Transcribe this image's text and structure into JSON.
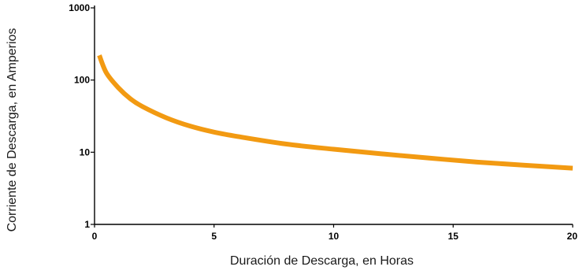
{
  "chart_data": {
    "type": "line",
    "title": "",
    "xlabel": "Duración de Descarga, en Horas",
    "ylabel": "Corriente de Descarga, en Amperios",
    "xlim": [
      0,
      20
    ],
    "ylim": [
      1,
      1000
    ],
    "yscale": "log",
    "grid": false,
    "legend": "none",
    "x_ticks": [
      "0",
      "5",
      "10",
      "15",
      "20"
    ],
    "y_ticks": [
      "1",
      "10",
      "100",
      "1000"
    ],
    "series": [
      {
        "color": "#F29A12",
        "x": [
          0.2,
          0.5,
          1,
          1.5,
          2,
          3,
          4,
          5,
          6,
          8,
          10,
          12,
          14,
          16,
          18,
          20
        ],
        "y": [
          220,
          125,
          78,
          55,
          43,
          30,
          23,
          19,
          16.5,
          13,
          11,
          9.5,
          8.3,
          7.3,
          6.6,
          6.0
        ]
      }
    ]
  }
}
